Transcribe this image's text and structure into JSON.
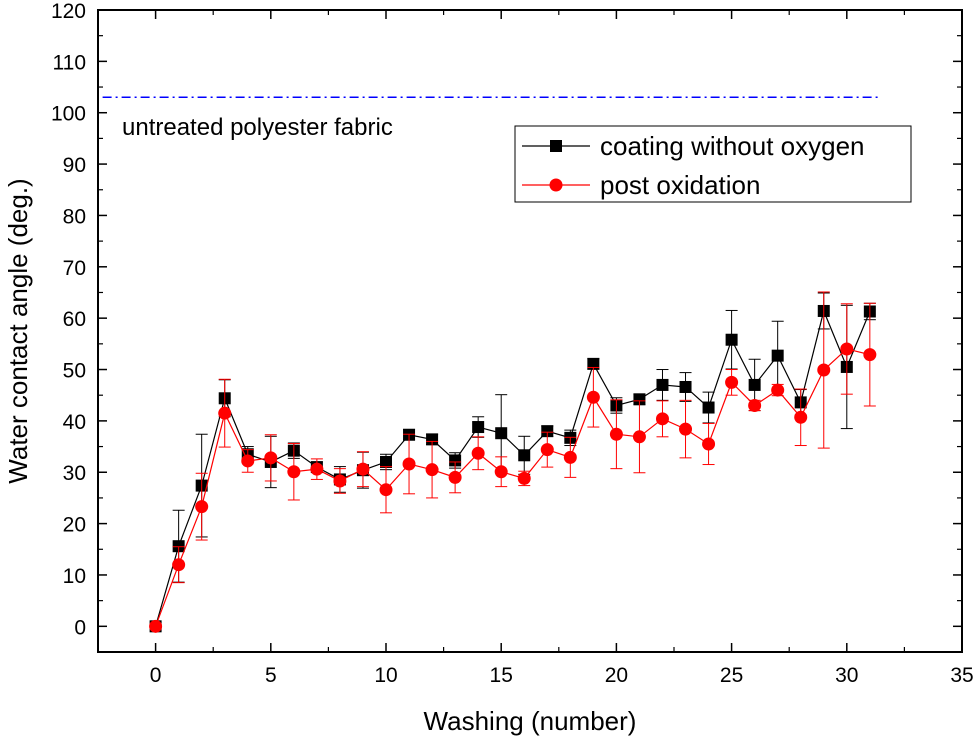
{
  "chart_data": {
    "type": "line",
    "xlabel": "Washing (number)",
    "ylabel": "Water contact angle (deg.)",
    "xlim": [
      -2.5,
      35
    ],
    "ylim": [
      -5,
      120
    ],
    "xticks": [
      0,
      5,
      10,
      15,
      20,
      25,
      30,
      35
    ],
    "yticks": [
      0,
      10,
      20,
      30,
      40,
      50,
      60,
      70,
      80,
      90,
      100,
      110,
      120
    ],
    "grid": false,
    "legend_position": "top-right",
    "x": [
      0,
      1,
      2,
      3,
      4,
      5,
      6,
      7,
      8,
      9,
      10,
      11,
      12,
      13,
      14,
      15,
      16,
      17,
      18,
      19,
      20,
      21,
      22,
      23,
      24,
      25,
      26,
      27,
      28,
      29,
      30,
      31
    ],
    "series": [
      {
        "name": "coating without oxygen",
        "color": "#000000",
        "marker": "square",
        "values": [
          0,
          15.6,
          27.4,
          44.4,
          33.5,
          32,
          34.2,
          31,
          28.6,
          30.4,
          32,
          37.3,
          36.4,
          32.3,
          38.8,
          37.6,
          33.3,
          38,
          36.7,
          51.1,
          43,
          44.2,
          47,
          46.6,
          42.6,
          55.8,
          47,
          52.7,
          43.6,
          61.4,
          50.5,
          61.3
        ],
        "errors": [
          0,
          7,
          10,
          3.6,
          1.5,
          5,
          1.5,
          1,
          2.5,
          3.5,
          1.5,
          1,
          1,
          1.5,
          2,
          7.5,
          3.7,
          1,
          1.5,
          1,
          1.5,
          1,
          3,
          2.8,
          3,
          5.7,
          5,
          6.7,
          2.5,
          3.5,
          12,
          1.6
        ]
      },
      {
        "name": "post oxidation",
        "color": "#ff0000",
        "marker": "circle",
        "values": [
          0,
          12,
          23.3,
          41.5,
          32.2,
          32.8,
          30.1,
          30.6,
          28.3,
          30.6,
          26.6,
          31.6,
          30.5,
          29,
          33.7,
          30.1,
          28.8,
          34.4,
          32.9,
          44.6,
          37.4,
          36.9,
          40.4,
          38.4,
          35.5,
          47.5,
          43,
          46,
          40.7,
          49.9,
          54,
          52.9
        ],
        "errors": [
          0,
          3.5,
          6.5,
          6.6,
          2.2,
          4.5,
          5.5,
          2,
          2.4,
          3.4,
          4.5,
          5.8,
          5.5,
          3,
          3.2,
          2.9,
          1.4,
          3.4,
          3.9,
          5.8,
          6.7,
          7,
          3.5,
          5.6,
          4,
          2.5,
          1,
          1.1,
          5.5,
          15.2,
          8.8,
          10
        ]
      }
    ],
    "reference_line": {
      "label": "untreated polyester fabric",
      "value": 103,
      "color": "#0000ff",
      "style": "dash-dot"
    }
  }
}
